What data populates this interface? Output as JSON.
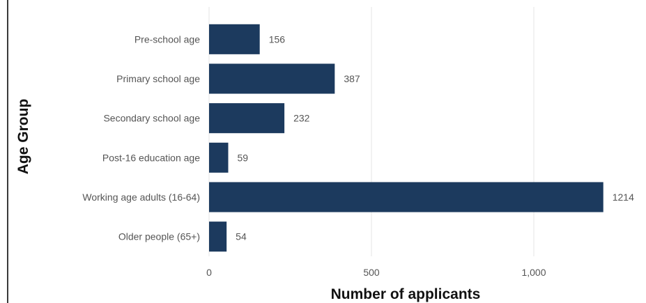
{
  "chart_data": {
    "type": "bar",
    "orientation": "horizontal",
    "categories": [
      "Pre-school age",
      "Primary school age",
      "Secondary school age",
      "Post-16 education age",
      "Working age adults (16-64)",
      "Older people (65+)"
    ],
    "values": [
      156,
      387,
      232,
      59,
      1214,
      54
    ],
    "data_labels": [
      "156",
      "387",
      "232",
      "59",
      "1214",
      "54"
    ],
    "xlabel": "Number of applicants",
    "ylabel": "Age Group",
    "xlim": [
      0,
      1250
    ],
    "x_ticks": [
      0,
      500,
      1000
    ],
    "x_tick_labels": [
      "0",
      "500",
      "1,000"
    ],
    "grid": "vertical",
    "bar_color": "#1c3a5e"
  }
}
